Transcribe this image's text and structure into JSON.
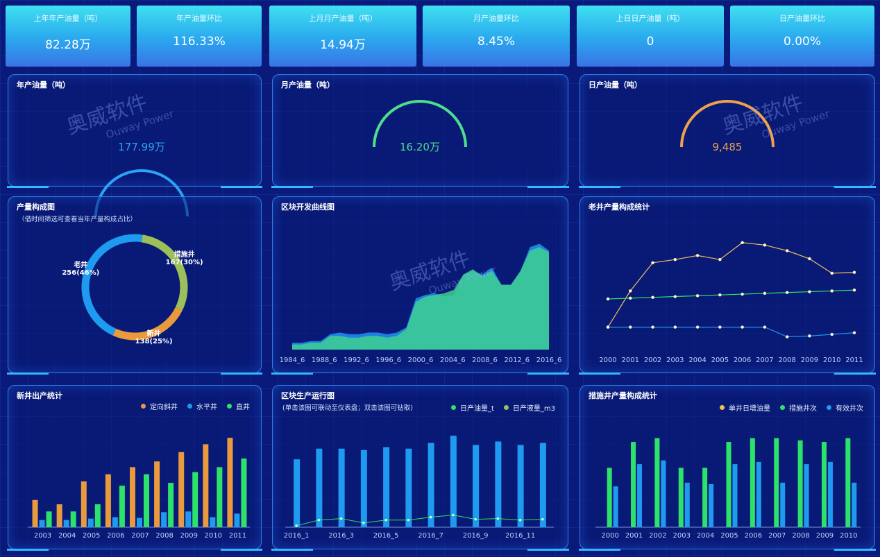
{
  "kpis": [
    {
      "label": "上年年产油量（吨）",
      "value": "82.28万"
    },
    {
      "label": "年产油量环比",
      "value": "116.33%"
    },
    {
      "label": "上月月产油量（吨）",
      "value": "14.94万"
    },
    {
      "label": "月产油量环比",
      "value": "8.45%"
    },
    {
      "label": "上日日产油量（吨）",
      "value": "0"
    },
    {
      "label": "日产油量环比",
      "value": "0.00%"
    }
  ],
  "gauges": [
    {
      "title": "年产油量（吨）",
      "value": "177.99万",
      "color": "#2aa4f4"
    },
    {
      "title": "月产油量（吨）",
      "value": "16.20万",
      "color": "#4be08a"
    },
    {
      "title": "日产油量（吨）",
      "value": "9,485",
      "color": "#f0a24a"
    }
  ],
  "watermark": {
    "cn": "奥威软件",
    "en": "Ouway Power"
  },
  "colors": {
    "blue": "#1e9bf0",
    "green": "#2de26a",
    "orange": "#e89a3c",
    "olive": "#9dbf5a",
    "line_yellow": "#f2c05a"
  },
  "composition": {
    "title": "产量构成图",
    "subtitle": "（借时间筛选可查看当年产量构成占比）",
    "slices": [
      {
        "name": "措施井",
        "label": "167(30%)",
        "value": 167,
        "color": "#9dbf5a"
      },
      {
        "name": "新井",
        "label": "138(25%)",
        "value": 138,
        "color": "#e89a3c"
      },
      {
        "name": "老井",
        "label": "256(46%)",
        "value": 256,
        "color": "#1e9bf0"
      }
    ]
  },
  "block_dev": {
    "title": "区块开发曲线图",
    "x_labels": [
      "1984_6",
      "1988_6",
      "1992_6",
      "1996_6",
      "2000_6",
      "2004_6",
      "2008_6",
      "2012_6",
      "2016_6"
    ],
    "chart_data": {
      "type": "area",
      "series": [
        {
          "values": [
            4,
            4,
            5,
            5,
            9,
            10,
            9,
            9,
            10,
            10,
            9,
            10,
            13,
            30,
            32,
            33,
            31,
            32,
            44,
            46,
            44,
            48,
            38,
            38,
            46,
            60,
            62,
            58
          ]
        },
        {
          "values": [
            3,
            3,
            4,
            4,
            8,
            8,
            7,
            7,
            8,
            8,
            7,
            8,
            12,
            28,
            31,
            32,
            33,
            35,
            44,
            47,
            43,
            46,
            38,
            38,
            46,
            58,
            60,
            57
          ]
        }
      ]
    }
  },
  "old_well": {
    "title": "老井产量构成统计",
    "x_labels": [
      "2000",
      "2001",
      "2002",
      "2003",
      "2004",
      "2005",
      "2006",
      "2007",
      "2008",
      "2009",
      "2010",
      "2011"
    ],
    "chart_data": {
      "type": "line",
      "series": [
        {
          "values": [
            15,
            60,
            95,
            99,
            104,
            99,
            120,
            117,
            110,
            100,
            82,
            83
          ]
        },
        {
          "values": [
            50,
            51,
            52,
            53,
            54,
            55,
            56,
            57,
            58,
            59,
            60,
            61
          ]
        },
        {
          "values": [
            15,
            15,
            15,
            15,
            15,
            15,
            15,
            15,
            3,
            4,
            6,
            8
          ]
        }
      ]
    }
  },
  "new_well": {
    "title": "新井出产统计",
    "legend": [
      "定向斜井",
      "水平井",
      "直井"
    ],
    "x_labels": [
      "2003",
      "2004",
      "2005",
      "2006",
      "2007",
      "2008",
      "2009",
      "2010",
      "2011"
    ],
    "chart_data": {
      "type": "bar",
      "series": [
        {
          "values": [
            38,
            32,
            64,
            74,
            84,
            92,
            105,
            116,
            125
          ]
        },
        {
          "values": [
            10,
            10,
            12,
            14,
            13,
            21,
            22,
            14,
            19
          ]
        },
        {
          "values": [
            22,
            22,
            32,
            58,
            74,
            62,
            77,
            84,
            96
          ]
        }
      ]
    }
  },
  "block_prod": {
    "title": "区块生产运行图",
    "subtitle": "(单击该图可联动至仪表盘；双击该图可钻取)",
    "legend": [
      "日产油量_t",
      "日产液量_m3"
    ],
    "x_labels": [
      "2016_1",
      "2016_3",
      "2016_5",
      "2016_7",
      "2016_9",
      "2016_11"
    ],
    "chart_data": {
      "type": "bar",
      "series": [
        {
          "values": [
            95,
            110,
            110,
            108,
            112,
            110,
            118,
            128,
            115,
            120,
            115,
            118
          ]
        },
        {
          "values": [
            2,
            10,
            12,
            6,
            10,
            10,
            14,
            17,
            11,
            12,
            10,
            11
          ]
        }
      ]
    }
  },
  "measure_well": {
    "title": "措施井产量构成统计",
    "legend": [
      "单井日增油量",
      "措施井次",
      "有效井次"
    ],
    "x_labels": [
      "2000",
      "2001",
      "2002",
      "2003",
      "2004",
      "2005",
      "2006",
      "2007",
      "2008",
      "2009",
      "2010"
    ],
    "chart_data": {
      "type": "bar",
      "series": [
        {
          "values": [
            0,
            0,
            0,
            0,
            0,
            0,
            0,
            0,
            0,
            0,
            0
          ]
        },
        {
          "values": [
            80,
            115,
            120,
            80,
            80,
            115,
            120,
            120,
            117,
            115,
            120
          ]
        },
        {
          "values": [
            55,
            85,
            90,
            60,
            58,
            85,
            88,
            60,
            85,
            88,
            60
          ]
        }
      ]
    }
  }
}
